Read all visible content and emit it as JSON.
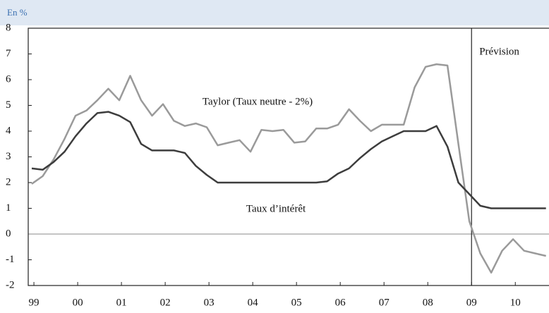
{
  "chart_data": {
    "type": "line",
    "unit_label": "En %",
    "x": [
      1998.95,
      1999.2,
      1999.45,
      1999.7,
      1999.95,
      2000.2,
      2000.45,
      2000.7,
      2000.95,
      2001.2,
      2001.45,
      2001.7,
      2001.95,
      2002.2,
      2002.45,
      2002.7,
      2002.95,
      2003.2,
      2003.45,
      2003.7,
      2003.95,
      2004.2,
      2004.45,
      2004.7,
      2004.95,
      2005.2,
      2005.45,
      2005.7,
      2005.95,
      2006.2,
      2006.45,
      2006.7,
      2006.95,
      2007.2,
      2007.45,
      2007.7,
      2007.95,
      2008.2,
      2008.45,
      2008.7,
      2008.95,
      2009.2,
      2009.45,
      2009.7,
      2009.95,
      2010.2,
      2010.45,
      2010.7
    ],
    "series": [
      {
        "name": "Taylor (Taux neutre - 2%)",
        "color": "#9a9a9a",
        "values": [
          1.95,
          2.25,
          2.9,
          3.7,
          4.6,
          4.8,
          5.2,
          5.65,
          5.2,
          6.15,
          5.2,
          4.6,
          5.05,
          4.4,
          4.2,
          4.3,
          4.15,
          3.45,
          3.55,
          3.65,
          3.2,
          4.05,
          4.0,
          4.05,
          3.55,
          3.6,
          4.1,
          4.1,
          4.25,
          4.85,
          4.4,
          4.0,
          4.25,
          4.25,
          4.25,
          5.7,
          6.5,
          6.6,
          6.55,
          3.5,
          0.5,
          -0.75,
          -1.5,
          -0.65,
          -0.2,
          -0.65,
          -0.75,
          -0.85
        ]
      },
      {
        "name": "Taux d’intérêt",
        "color": "#3d3d3d",
        "values": [
          2.55,
          2.5,
          2.8,
          3.2,
          3.8,
          4.3,
          4.7,
          4.75,
          4.6,
          4.35,
          3.5,
          3.25,
          3.25,
          3.25,
          3.15,
          2.65,
          2.3,
          2.0,
          2.0,
          2.0,
          2.0,
          2.0,
          2.0,
          2.0,
          2.0,
          2.0,
          2.0,
          2.05,
          2.35,
          2.55,
          2.95,
          3.3,
          3.6,
          3.8,
          4.0,
          4.0,
          4.0,
          4.2,
          3.4,
          2.0,
          1.55,
          1.1,
          1.0,
          1.0,
          1.0,
          1.0,
          1.0,
          1.0
        ]
      }
    ],
    "forecast": {
      "x": 2009,
      "label": "Prévision"
    },
    "xlim": [
      1998.87,
      2010.77
    ],
    "xticks": [
      {
        "value": 1999,
        "label": "99"
      },
      {
        "value": 2000,
        "label": "00"
      },
      {
        "value": 2001,
        "label": "01"
      },
      {
        "value": 2002,
        "label": "02"
      },
      {
        "value": 2003,
        "label": "03"
      },
      {
        "value": 2004,
        "label": "04"
      },
      {
        "value": 2005,
        "label": "05"
      },
      {
        "value": 2006,
        "label": "06"
      },
      {
        "value": 2007,
        "label": "07"
      },
      {
        "value": 2008,
        "label": "08"
      },
      {
        "value": 2009,
        "label": "09"
      },
      {
        "value": 2010,
        "label": "10"
      }
    ],
    "ylim": [
      -2,
      8
    ],
    "yticks": [
      -2,
      -1,
      0,
      1,
      2,
      3,
      4,
      5,
      6,
      7,
      8
    ]
  }
}
